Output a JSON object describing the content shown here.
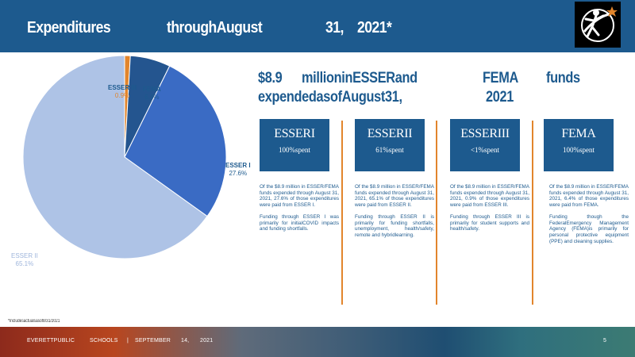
{
  "header": {
    "title_parts": [
      "Expenditures",
      "throughAugust",
      "31,",
      "2021*"
    ]
  },
  "headline": {
    "line1_parts": [
      "$8.9",
      "millioninESSERand",
      "FEMA",
      "funds"
    ],
    "line2_parts": [
      "expendedasofAugust31,",
      "2021"
    ]
  },
  "chart_data": {
    "type": "pie",
    "title": "",
    "slices": [
      {
        "label": "ESSER III",
        "value": 0.9,
        "display": "0.9%",
        "color": "#e2852c"
      },
      {
        "label": "FEMA",
        "value": 6.4,
        "display": "6.4%",
        "color": "#24558f"
      },
      {
        "label": "ESSER I",
        "value": 27.6,
        "display": "27.6%",
        "color": "#3a6bc4"
      },
      {
        "label": "ESSER II",
        "value": 65.1,
        "display": "65.1%",
        "color": "#aec3e6"
      }
    ]
  },
  "footnote": "*Includesactualsasof8/31/2021",
  "cards": [
    {
      "title": "ESSERI",
      "subtitle": "100%spent",
      "para1": "Of the $8.9 million in ESSER/FEMA funds expended through August 31, 2021, 27.6% of those expenditures were paid from ESSER I.",
      "para2": "Funding through ESSER I was primarily for initialCOVID impacts and funding shortfalls."
    },
    {
      "title": "ESSERII",
      "subtitle": "61%spent",
      "para1": "Of the $8.9 million in ESSER/FEMA funds expended through August 31, 2021, 65.1% of those expenditures were paid from ESSER II.",
      "para2": "Funding through ESSER II is primarily for funding shortfalls, unemployment, health/safety, remote and hybridlearning."
    },
    {
      "title": "ESSERIII",
      "subtitle": "<1%spent",
      "para1": "Of the $8.9 million in ESSER/FEMA funds expended through August 31, 2021, 0.9% of those expenditures were paid from ESSER III.",
      "para2": "Funding through ESSER III is primarily for student supports and health/safety."
    },
    {
      "title": "FEMA",
      "subtitle": "100%spent",
      "para1": "Of the $8.9 million in ESSER/FEMA funds expended through August 31, 2021, 6.4% of those expenditures were paid from FEMA.",
      "para2": "Funding though the FederalEmergency Management Agency (FEMA)is primarily for personal protective equipment (PPE) and cleaning supplies."
    }
  ],
  "footer": {
    "org1": "EVERETTPUBLIC",
    "org2": "SCHOOLS",
    "sep": "|",
    "month": "SEPTEMBER",
    "day": "14,",
    "year": "2021",
    "page": "5"
  },
  "icons": {
    "logo": "everett-schools-logo-icon"
  }
}
